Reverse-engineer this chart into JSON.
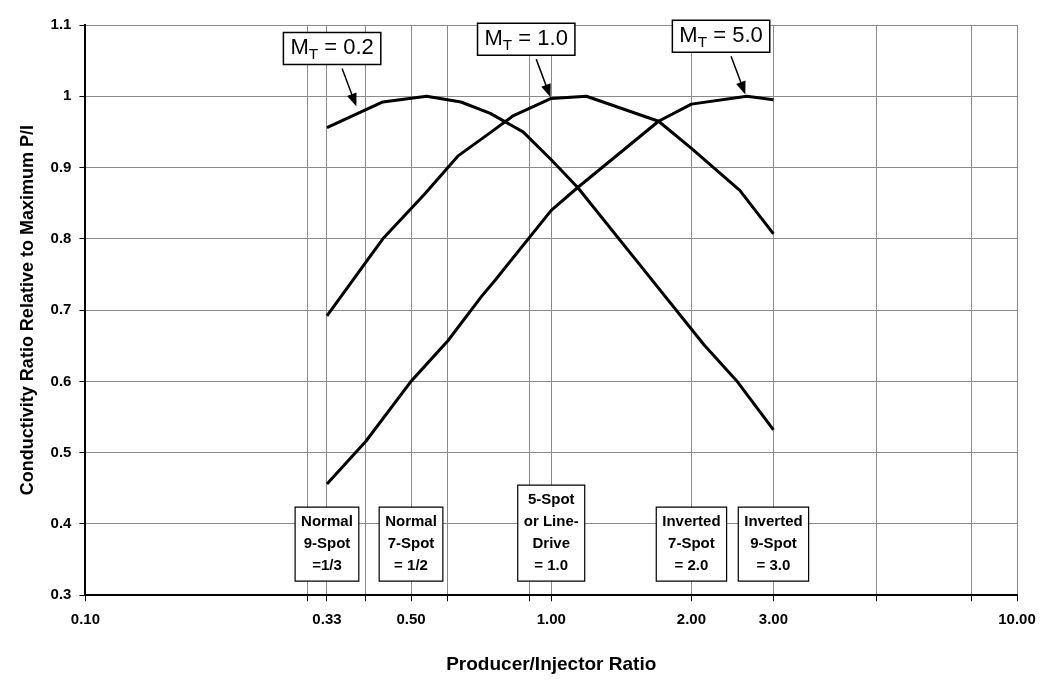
{
  "chart_data": {
    "type": "line",
    "xlabel": "Producer/Injector Ratio",
    "ylabel": "Conductivity Ratio Relative to Maximum P/I",
    "log": "x",
    "xlim": [
      0.1,
      10
    ],
    "ylim": [
      0.3,
      1.1
    ],
    "xticks": [
      {
        "value": 0.1,
        "label": "0.10"
      },
      {
        "value": 0.3,
        "label": null
      },
      {
        "value": 0.33,
        "label": "0.33"
      },
      {
        "value": 0.4,
        "label": null
      },
      {
        "value": 0.5,
        "label": "0.50"
      },
      {
        "value": 0.6,
        "label": null
      },
      {
        "value": 0.9,
        "label": null
      },
      {
        "value": 1,
        "label": "1.00"
      },
      {
        "value": 2,
        "label": "2.00"
      },
      {
        "value": 3,
        "label": "3.00"
      },
      {
        "value": 5,
        "label": null
      },
      {
        "value": 8,
        "label": null
      },
      {
        "value": 10,
        "label": "10.00"
      }
    ],
    "yticks": [
      0.3,
      0.4,
      0.5,
      0.6,
      0.7,
      0.8,
      0.9,
      1,
      1.1
    ],
    "grid": true,
    "legend": false,
    "marker": "none",
    "line_style": "solid",
    "series": [
      {
        "color": "#000000",
        "x": [
          0.33,
          0.435,
          0.54,
          0.64,
          0.74,
          0.87,
          1.0,
          1.14,
          1.5,
          2.13,
          2.5,
          3.0
        ],
        "values": [
          0.956,
          0.992,
          1.0,
          0.992,
          0.976,
          0.95,
          0.911,
          0.872,
          0.775,
          0.651,
          0.601,
          0.532
        ]
      },
      {
        "color": "#000000",
        "x": [
          0.33,
          0.435,
          0.535,
          0.63,
          0.74,
          0.83,
          1.0,
          1.19,
          1.7,
          2.0,
          2.54,
          3.0
        ],
        "values": [
          0.692,
          0.8,
          0.863,
          0.916,
          0.949,
          0.973,
          0.997,
          1.0,
          0.965,
          0.927,
          0.868,
          0.807
        ]
      },
      {
        "color": "#000000",
        "x": [
          0.33,
          0.4,
          0.5,
          0.6,
          0.71,
          0.76,
          1.0,
          1.14,
          1.7,
          2.0,
          2.63,
          3.0
        ],
        "values": [
          0.456,
          0.516,
          0.6,
          0.657,
          0.72,
          0.743,
          0.84,
          0.872,
          0.965,
          0.989,
          1.0,
          0.995
        ]
      }
    ],
    "annotations": [
      {
        "text": "M$_{T}$ = 0.2",
        "x": 0.383,
        "y": 0.983
      },
      {
        "text": "M$_{T}$ = 1.0",
        "x": 1.0,
        "y": 0.996
      },
      {
        "text": "M$_{T}$ = 5.0",
        "x": 2.62,
        "y": 1.0
      },
      "Normal\n9-Spot\n=1/3",
      "Normal\n7-Spot\n= 1/2",
      "5-Spot\nor Line-\nDrive\n= 1.0",
      "Inverted\n7-Spot\n= 2.0",
      "Inverted\n9-Spot\n= 3.0"
    ]
  }
}
